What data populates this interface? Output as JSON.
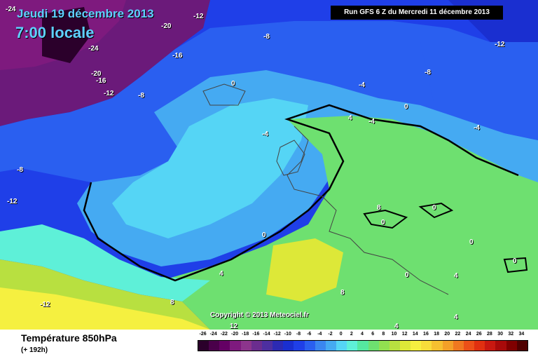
{
  "header": {
    "date": "Jeudi 19 décembre 2013",
    "time": "7:00 locale",
    "run": "Run GFS 6 Z du Mercredi 11 décembre 2013"
  },
  "copyright": "Copyright © 2013 Meteociel.fr",
  "footer": {
    "parameter": "Température 850hPa",
    "lead_time": "(+ 192h)"
  },
  "legend": {
    "ticks": [
      "-26",
      "-24",
      "-22",
      "-20",
      "-18",
      "-16",
      "-14",
      "-12",
      "-10",
      "-8",
      "-6",
      "-4",
      "-2",
      "0",
      "2",
      "4",
      "6",
      "8",
      "10",
      "12",
      "14",
      "16",
      "18",
      "20",
      "22",
      "24",
      "26",
      "28",
      "30",
      "32",
      "34"
    ],
    "colors": [
      "#2b002b",
      "#4a004a",
      "#640064",
      "#7e1a7e",
      "#8c358c",
      "#6b2d8f",
      "#4d2fa0",
      "#2c2ab3",
      "#1a2fd0",
      "#1f3fe8",
      "#2a5ff0",
      "#3a86f0",
      "#45aaf2",
      "#55d5f5",
      "#5ef0d8",
      "#55e8a0",
      "#6ee070",
      "#92e050",
      "#b8e040",
      "#dde838",
      "#f5f040",
      "#f7dc3a",
      "#f5c030",
      "#f3a028",
      "#f07820",
      "#ec5018",
      "#e03010",
      "#c81810",
      "#a80a0a",
      "#800000",
      "#500000"
    ]
  },
  "contour_labels": [
    {
      "text": "-24"
    },
    {
      "text": "-20"
    },
    {
      "text": "-12"
    },
    {
      "text": "-24"
    },
    {
      "text": "-16"
    },
    {
      "text": "-8"
    },
    {
      "text": "-20"
    },
    {
      "text": "-16"
    },
    {
      "text": "-12"
    },
    {
      "text": "-8"
    },
    {
      "text": "0"
    },
    {
      "text": "-4"
    },
    {
      "text": "-4"
    },
    {
      "text": "-8"
    },
    {
      "text": "-12"
    },
    {
      "text": "0"
    },
    {
      "text": "4"
    },
    {
      "text": "-4"
    },
    {
      "text": "-4"
    },
    {
      "text": "-8"
    },
    {
      "text": "-12"
    },
    {
      "text": "0"
    },
    {
      "text": "8"
    },
    {
      "text": "0"
    },
    {
      "text": "0"
    },
    {
      "text": "0"
    },
    {
      "text": "0"
    },
    {
      "text": "4"
    },
    {
      "text": "8"
    },
    {
      "text": "4"
    },
    {
      "text": "-12"
    },
    {
      "text": "12"
    },
    {
      "text": "8"
    },
    {
      "text": "4"
    },
    {
      "text": "4"
    },
    {
      "text": "0"
    }
  ]
}
